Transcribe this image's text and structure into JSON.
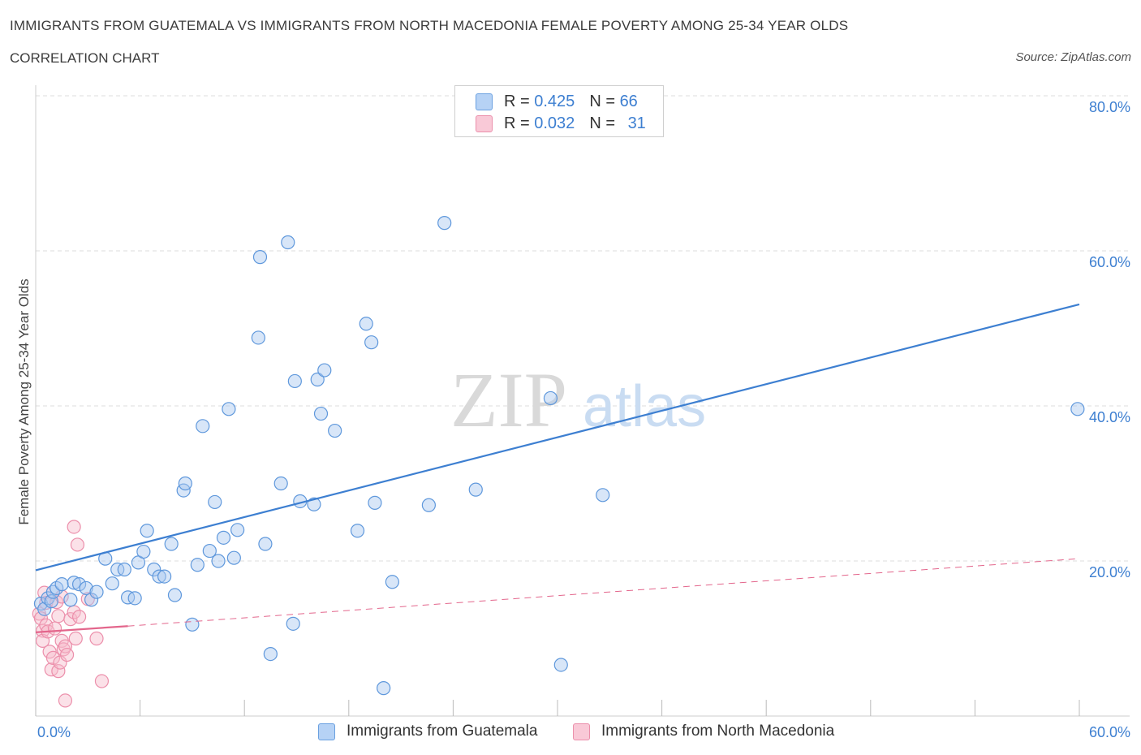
{
  "title": "IMMIGRANTS FROM GUATEMALA VS IMMIGRANTS FROM NORTH MACEDONIA FEMALE POVERTY AMONG 25-34 YEAR OLDS",
  "subtitle": "CORRELATION CHART",
  "source": "Source: ZipAtlas.com",
  "watermark": {
    "zip": "ZIP",
    "atlas": "atlas"
  },
  "legend": {
    "rows": [
      {
        "r_label": "R = ",
        "r": "0.425",
        "n_label": "N = ",
        "n": "66",
        "color": "#a9c8f0"
      },
      {
        "r_label": "R = ",
        "r": "0.032",
        "n_label": "N = ",
        "n": "31",
        "color": "#f6bccd"
      }
    ]
  },
  "colors": {
    "blue": "#3d7fd1",
    "blue_fill": "#a9c8f0",
    "pink": "#e3668c",
    "pink_fill": "#f6bccd",
    "grid": "#dddddd"
  },
  "chart_data": {
    "type": "scatter",
    "xlabel": "",
    "ylabel": "Female Poverty Among 25-34 Year Olds",
    "xlim": [
      0,
      60
    ],
    "ylim": [
      0,
      80
    ],
    "x_tick_labels": [
      "0.0%",
      "60.0%"
    ],
    "y_tick_labels": [
      "20.0%",
      "40.0%",
      "60.0%",
      "80.0%"
    ],
    "grid": true,
    "legend_position": "top-center",
    "series": [
      {
        "name": "Immigrants from Guatemala",
        "color": "#3d7fd1",
        "points": [
          [
            0.3,
            14.5
          ],
          [
            0.5,
            13.8
          ],
          [
            0.7,
            15.2
          ],
          [
            0.9,
            14.8
          ],
          [
            1.0,
            16.0
          ],
          [
            1.2,
            16.5
          ],
          [
            1.5,
            17.0
          ],
          [
            2.0,
            15.0
          ],
          [
            2.2,
            17.2
          ],
          [
            2.5,
            17.0
          ],
          [
            2.9,
            16.5
          ],
          [
            3.2,
            15.0
          ],
          [
            3.5,
            16.0
          ],
          [
            4.0,
            20.3
          ],
          [
            4.4,
            17.1
          ],
          [
            4.7,
            18.9
          ],
          [
            5.1,
            18.9
          ],
          [
            5.3,
            15.3
          ],
          [
            5.7,
            15.2
          ],
          [
            5.9,
            19.8
          ],
          [
            6.2,
            21.2
          ],
          [
            6.4,
            23.9
          ],
          [
            6.8,
            18.9
          ],
          [
            7.1,
            18.0
          ],
          [
            7.4,
            18.0
          ],
          [
            7.8,
            22.2
          ],
          [
            8.0,
            15.6
          ],
          [
            8.5,
            29.1
          ],
          [
            8.6,
            30.0
          ],
          [
            9.0,
            11.8
          ],
          [
            9.3,
            19.5
          ],
          [
            9.6,
            37.4
          ],
          [
            10.0,
            21.3
          ],
          [
            10.3,
            27.6
          ],
          [
            10.5,
            20.0
          ],
          [
            10.8,
            23.0
          ],
          [
            11.1,
            39.6
          ],
          [
            11.4,
            20.4
          ],
          [
            11.6,
            24.0
          ],
          [
            12.8,
            48.8
          ],
          [
            12.9,
            59.2
          ],
          [
            13.2,
            22.2
          ],
          [
            13.5,
            8.0
          ],
          [
            14.1,
            30.0
          ],
          [
            14.5,
            61.1
          ],
          [
            14.8,
            11.9
          ],
          [
            14.9,
            43.2
          ],
          [
            15.2,
            27.7
          ],
          [
            16.0,
            27.3
          ],
          [
            16.2,
            43.4
          ],
          [
            16.4,
            39.0
          ],
          [
            16.6,
            44.6
          ],
          [
            17.2,
            36.8
          ],
          [
            18.5,
            23.9
          ],
          [
            19.0,
            50.6
          ],
          [
            19.3,
            48.2
          ],
          [
            19.5,
            27.5
          ],
          [
            20.0,
            3.6
          ],
          [
            20.5,
            17.3
          ],
          [
            22.6,
            27.2
          ],
          [
            23.5,
            63.6
          ],
          [
            25.3,
            29.2
          ],
          [
            29.6,
            41.0
          ],
          [
            30.2,
            6.6
          ],
          [
            32.6,
            28.5
          ],
          [
            59.9,
            39.6
          ]
        ],
        "trend": {
          "x": [
            0,
            60
          ],
          "y": [
            18.8,
            53.1
          ]
        }
      },
      {
        "name": "Immigrants from North Macedonia",
        "color": "#e3668c",
        "points": [
          [
            0.2,
            13.2
          ],
          [
            0.3,
            12.6
          ],
          [
            0.4,
            11.0
          ],
          [
            0.4,
            9.7
          ],
          [
            0.5,
            15.9
          ],
          [
            0.6,
            11.7
          ],
          [
            0.6,
            14.6
          ],
          [
            0.7,
            10.9
          ],
          [
            0.8,
            8.3
          ],
          [
            0.9,
            6.0
          ],
          [
            1.0,
            7.5
          ],
          [
            1.1,
            11.3
          ],
          [
            1.2,
            14.7
          ],
          [
            1.3,
            12.9
          ],
          [
            1.3,
            5.8
          ],
          [
            1.4,
            6.9
          ],
          [
            1.5,
            9.7
          ],
          [
            1.5,
            15.4
          ],
          [
            1.6,
            8.6
          ],
          [
            1.7,
            9.0
          ],
          [
            1.8,
            7.9
          ],
          [
            2.0,
            12.5
          ],
          [
            2.2,
            24.4
          ],
          [
            2.2,
            13.4
          ],
          [
            2.3,
            10.0
          ],
          [
            2.4,
            22.1
          ],
          [
            2.5,
            12.8
          ],
          [
            1.7,
            2.0
          ],
          [
            3.0,
            15.1
          ],
          [
            3.5,
            10.0
          ],
          [
            3.8,
            4.5
          ]
        ],
        "trend_solid": {
          "x": [
            0,
            5.3
          ],
          "y": [
            10.8,
            11.6
          ]
        },
        "trend_dashed": {
          "x": [
            5.3,
            60
          ],
          "y": [
            11.6,
            20.3
          ]
        }
      }
    ]
  },
  "bottom_legend": [
    {
      "label": "Immigrants from Guatemala",
      "color": "#a9c8f0"
    },
    {
      "label": "Immigrants from North Macedonia",
      "color": "#f6bccd"
    }
  ]
}
